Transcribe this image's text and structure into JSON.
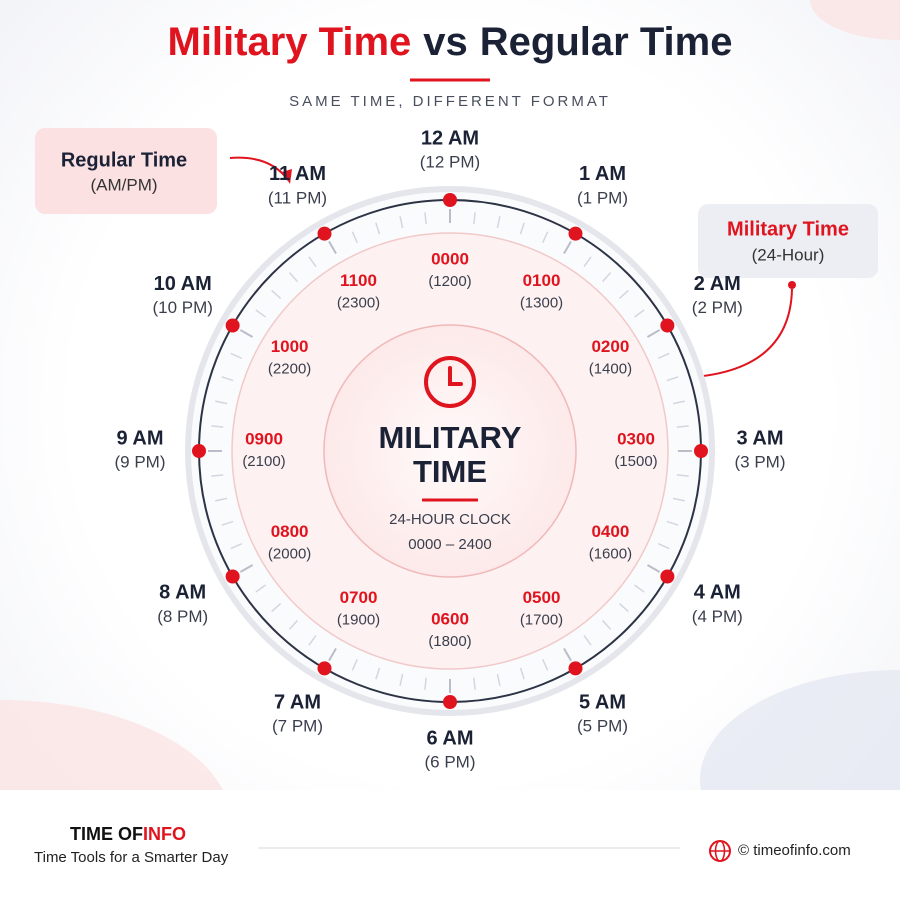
{
  "header": {
    "title": {
      "part1": "Military Time",
      "part2": "vs",
      "part3": "Regular Time"
    },
    "subtitle": "SAME TIME, DIFFERENT FORMAT"
  },
  "callouts": {
    "regular": {
      "label": "Regular Time",
      "note": "(AM/PM)"
    },
    "military": {
      "label": "Military Time",
      "note": "(24-Hour)"
    }
  },
  "center": {
    "line1": "MILITARY",
    "line2": "TIME",
    "caption": "24-HOUR CLOCK",
    "range": "0000 – 2400"
  },
  "hours": [
    {
      "regular": "12 AM",
      "regular_alt": "(12 PM)",
      "military": "0000",
      "military_alt": "(1200)"
    },
    {
      "regular": "1 AM",
      "regular_alt": "(1 PM)",
      "military": "0100",
      "military_alt": "(1300)"
    },
    {
      "regular": "2 AM",
      "regular_alt": "(2 PM)",
      "military": "0200",
      "military_alt": "(1400)"
    },
    {
      "regular": "3 AM",
      "regular_alt": "(3 PM)",
      "military": "0300",
      "military_alt": "(1500)"
    },
    {
      "regular": "4 AM",
      "regular_alt": "(4 PM)",
      "military": "0400",
      "military_alt": "(1600)"
    },
    {
      "regular": "5 AM",
      "regular_alt": "(5 PM)",
      "military": "0500",
      "military_alt": "(1700)"
    },
    {
      "regular": "6 AM",
      "regular_alt": "(6 PM)",
      "military": "0600",
      "military_alt": "(1800)"
    },
    {
      "regular": "7 AM",
      "regular_alt": "(7 PM)",
      "military": "0700",
      "military_alt": "(1900)"
    },
    {
      "regular": "8 AM",
      "regular_alt": "(8 PM)",
      "military": "0800",
      "military_alt": "(2000)"
    },
    {
      "regular": "9 AM",
      "regular_alt": "(9 PM)",
      "military": "0900",
      "military_alt": "(2100)"
    },
    {
      "regular": "10 AM",
      "regular_alt": "(10 PM)",
      "military": "1000",
      "military_alt": "(2200)"
    },
    {
      "regular": "11 AM",
      "regular_alt": "(11 PM)",
      "military": "1100",
      "military_alt": "(2300)"
    }
  ],
  "footer": {
    "brand_dark": "TIME OF",
    "brand_red": "INFO",
    "tagline": "Time Tools for a Smarter Day",
    "website": "© timeofinfo.com"
  }
}
